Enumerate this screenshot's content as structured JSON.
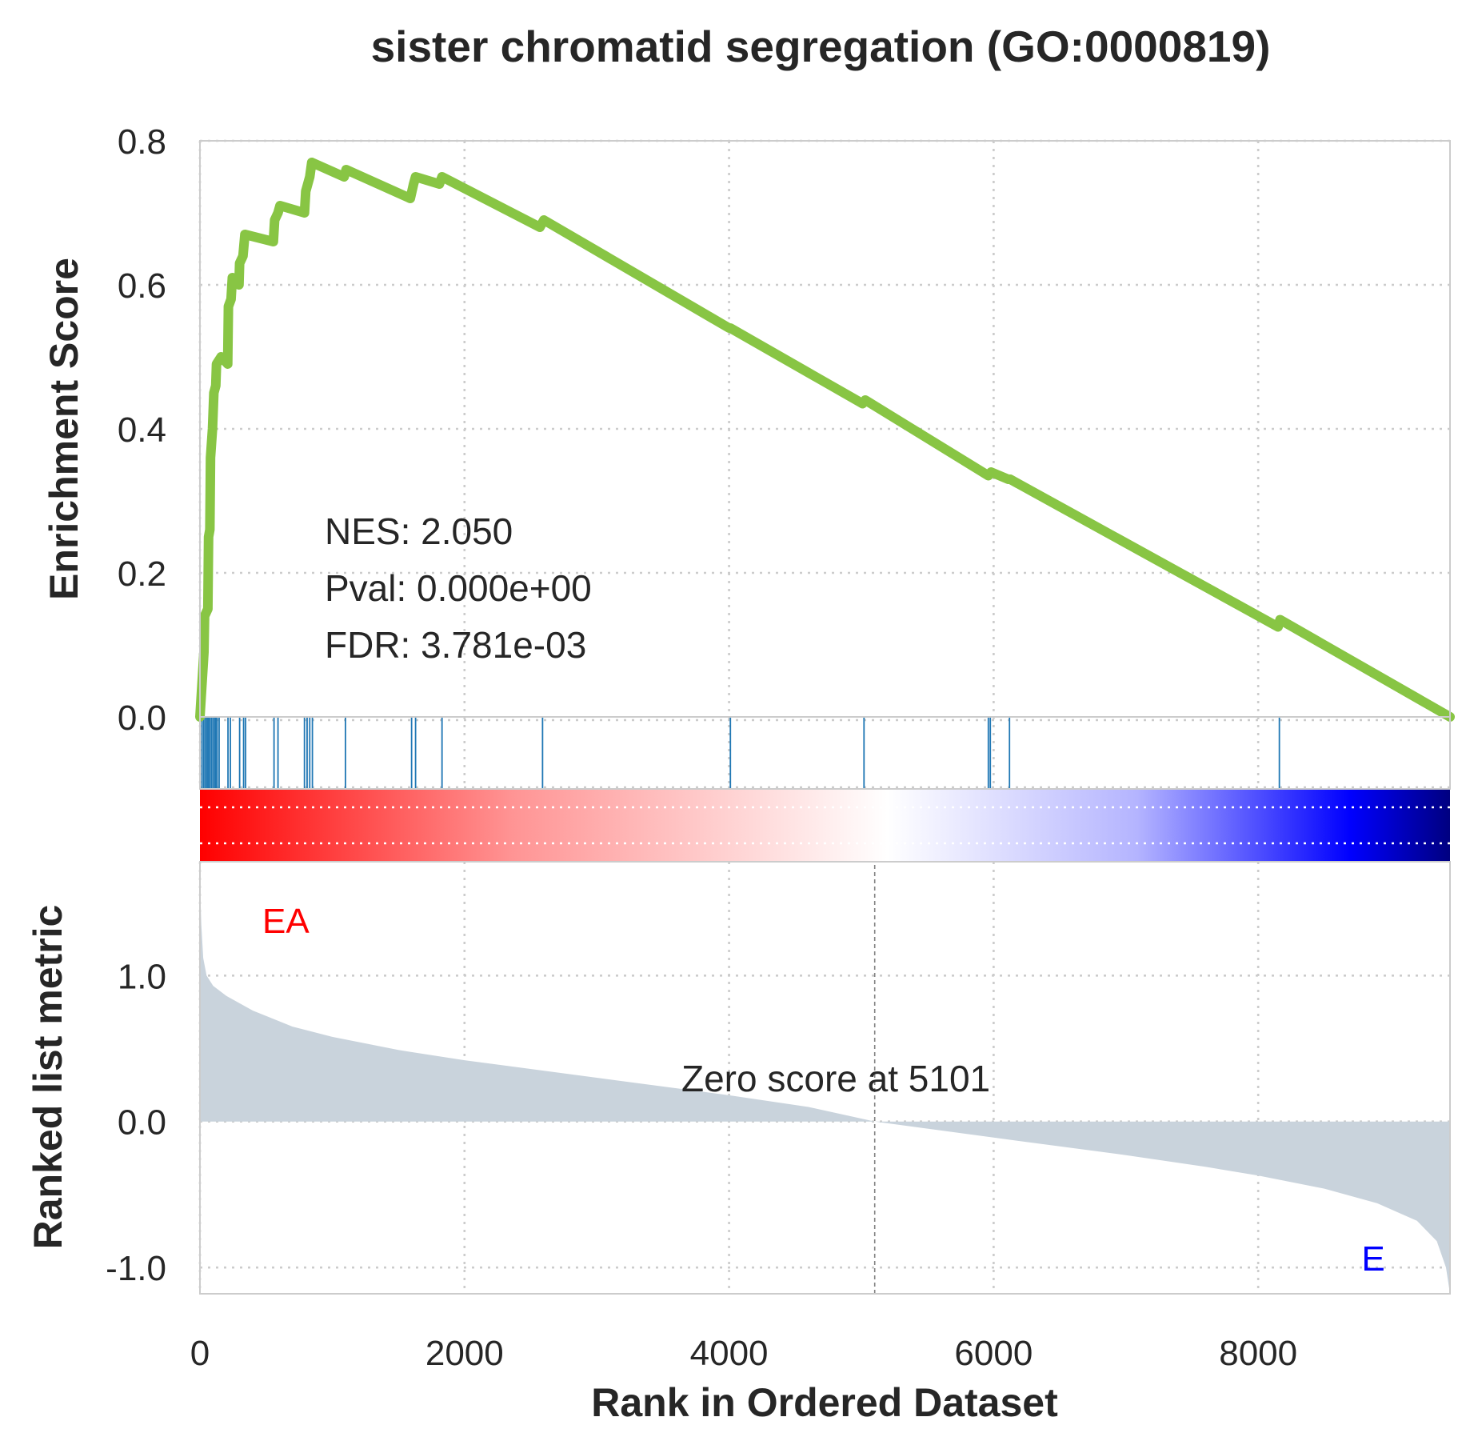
{
  "title": "sister chromatid segregation (GO:0000819)",
  "colors": {
    "es_line": "#88c544",
    "hit": "#1f77b4",
    "metric_fill": "#c9d3dc",
    "pos_label": "#ff0000",
    "neg_label": "#0000ff",
    "text": "#262626",
    "grid": "#cccccc"
  },
  "chart_data": {
    "type": "line",
    "x_range": [
      0,
      9450
    ],
    "xlabel": "Rank in Ordered Dataset",
    "xticks": [
      0,
      2000,
      4000,
      6000,
      8000
    ],
    "xtick_labels": [
      "0",
      "2000",
      "4000",
      "6000",
      "8000"
    ],
    "grid": true,
    "panels": {
      "enrichment": {
        "ylabel": "Enrichment Score",
        "ylim": [
          0,
          0.8
        ],
        "yticks": [
          0,
          0.2,
          0.4,
          0.6,
          0.8
        ],
        "ytick_labels": [
          "0.0",
          "0.2",
          "0.4",
          "0.6",
          "0.8"
        ],
        "es_curve": [
          [
            0,
            0
          ],
          [
            30,
            0.09
          ],
          [
            35,
            0.14
          ],
          [
            60,
            0.15
          ],
          [
            65,
            0.25
          ],
          [
            75,
            0.26
          ],
          [
            80,
            0.36
          ],
          [
            95,
            0.4
          ],
          [
            105,
            0.45
          ],
          [
            120,
            0.46
          ],
          [
            125,
            0.49
          ],
          [
            160,
            0.5
          ],
          [
            210,
            0.49
          ],
          [
            215,
            0.57
          ],
          [
            235,
            0.58
          ],
          [
            245,
            0.61
          ],
          [
            295,
            0.6
          ],
          [
            300,
            0.63
          ],
          [
            325,
            0.64
          ],
          [
            340,
            0.67
          ],
          [
            555,
            0.66
          ],
          [
            565,
            0.69
          ],
          [
            590,
            0.7
          ],
          [
            605,
            0.71
          ],
          [
            790,
            0.7
          ],
          [
            800,
            0.73
          ],
          [
            815,
            0.74
          ],
          [
            830,
            0.75
          ],
          [
            845,
            0.77
          ],
          [
            1090,
            0.75
          ],
          [
            1105,
            0.76
          ],
          [
            1590,
            0.72
          ],
          [
            1615,
            0.74
          ],
          [
            1630,
            0.75
          ],
          [
            1810,
            0.74
          ],
          [
            1830,
            0.75
          ],
          [
            2570,
            0.68
          ],
          [
            2600,
            0.69
          ],
          [
            4000,
            0.54
          ],
          [
            4010,
            0.54
          ],
          [
            5010,
            0.435
          ],
          [
            5030,
            0.44
          ],
          [
            5960,
            0.335
          ],
          [
            5980,
            0.34
          ],
          [
            6110,
            0.33
          ],
          [
            6125,
            0.33
          ],
          [
            8150,
            0.125
          ],
          [
            8165,
            0.135
          ],
          [
            9450,
            0.0
          ]
        ],
        "stats": [
          "NES: 2.050",
          "Pval: 0.000e+00",
          "FDR: 3.781e-03"
        ]
      },
      "hits": {
        "positions": [
          15,
          28,
          40,
          52,
          63,
          74,
          86,
          98,
          110,
          120,
          130,
          145,
          212,
          230,
          300,
          330,
          345,
          560,
          590,
          790,
          810,
          830,
          850,
          1100,
          1600,
          1630,
          1830,
          2590,
          4010,
          5020,
          5960,
          5975,
          6120,
          8160
        ]
      },
      "metric": {
        "ylabel": "Ranked list metric",
        "ylim": [
          -1.18,
          1.78
        ],
        "yticks": [
          -1.0,
          0.0,
          1.0
        ],
        "ytick_labels": [
          "-1.0",
          "0.0",
          "1.0"
        ],
        "curve": [
          [
            0,
            1.65
          ],
          [
            10,
            1.35
          ],
          [
            25,
            1.12
          ],
          [
            50,
            1.0
          ],
          [
            100,
            0.93
          ],
          [
            200,
            0.86
          ],
          [
            400,
            0.76
          ],
          [
            700,
            0.65
          ],
          [
            1000,
            0.58
          ],
          [
            1500,
            0.49
          ],
          [
            2000,
            0.42
          ],
          [
            3000,
            0.3
          ],
          [
            4000,
            0.18
          ],
          [
            4600,
            0.1
          ],
          [
            5101,
            0.0
          ],
          [
            6000,
            -0.11
          ],
          [
            7000,
            -0.23
          ],
          [
            7600,
            -0.31
          ],
          [
            8000,
            -0.37
          ],
          [
            8500,
            -0.46
          ],
          [
            8900,
            -0.56
          ],
          [
            9200,
            -0.68
          ],
          [
            9350,
            -0.82
          ],
          [
            9420,
            -1.0
          ],
          [
            9450,
            -1.18
          ]
        ],
        "zero_rank": 5101,
        "zero_label": "Zero score at 5101",
        "pos_label": "EA",
        "neg_label": "E"
      }
    }
  }
}
